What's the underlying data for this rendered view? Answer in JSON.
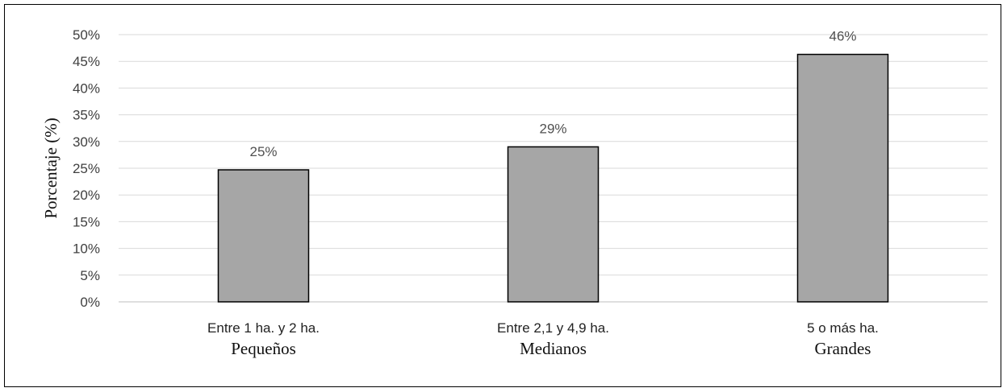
{
  "chart_data": {
    "type": "bar",
    "categories": [
      "Entre 1 ha. y 2 ha.",
      "Entre 2,1 y  4,9 ha.",
      "5 o más ha."
    ],
    "category_groups": [
      "Pequeños",
      "Medianos",
      "Grandes"
    ],
    "values": [
      24.7,
      29.0,
      46.3
    ],
    "data_labels": [
      "25%",
      "29%",
      "46%"
    ],
    "ylabel": "Porcentaje (%)",
    "xlabel": "",
    "title": "",
    "ylim": [
      0,
      50
    ],
    "yticks": [
      "0%",
      "5%",
      "10%",
      "15%",
      "20%",
      "25%",
      "30%",
      "35%",
      "40%",
      "45%",
      "50%"
    ],
    "grid": true,
    "bar_color": "#a6a6a6",
    "bar_edge_color": "#000000",
    "grid_color": "#d9d9d9"
  }
}
